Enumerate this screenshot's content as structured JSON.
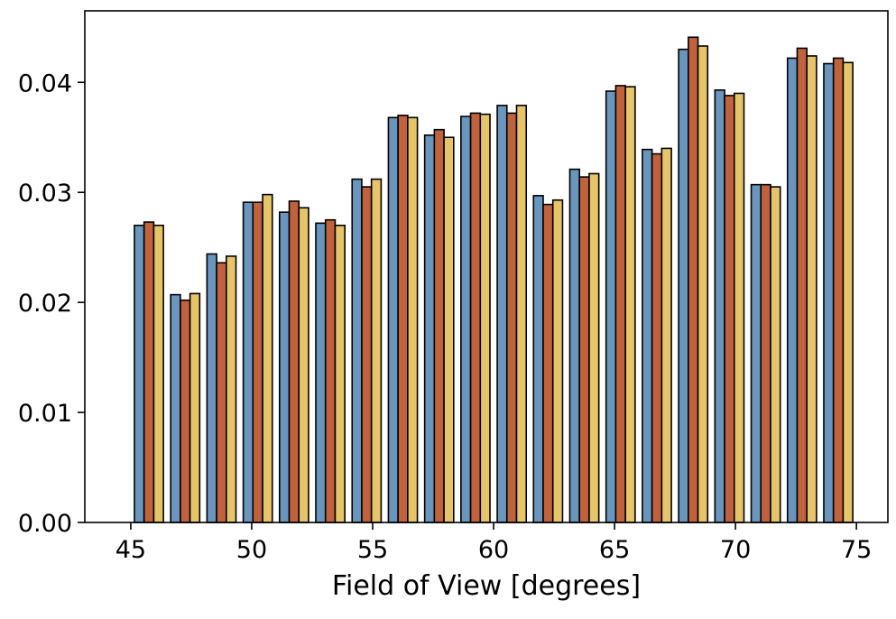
{
  "chart_data": {
    "type": "bar",
    "title": "",
    "xlabel": "Field of View [degrees]",
    "ylabel": "",
    "x_bin_edges": [
      45,
      46.5,
      48,
      49.5,
      51,
      52.5,
      54,
      55.5,
      57,
      58.5,
      60,
      61.5,
      63,
      64.5,
      66,
      67.5,
      69,
      70.5,
      72,
      73.5,
      75
    ],
    "xlim": [
      43.1,
      76.3
    ],
    "ylim": [
      0,
      0.0465
    ],
    "xticks": [
      45,
      50,
      55,
      60,
      65,
      70,
      75
    ],
    "xtick_labels": [
      "45",
      "50",
      "55",
      "60",
      "65",
      "70",
      "75"
    ],
    "yticks": [
      0,
      0.01,
      0.02,
      0.03,
      0.04
    ],
    "ytick_labels": [
      "0.00",
      "0.01",
      "0.02",
      "0.03",
      "0.04"
    ],
    "grid": false,
    "legend": "none",
    "series": [
      {
        "color": "#6a95bd",
        "values": [
          0.027,
          0.0207,
          0.0244,
          0.0291,
          0.0282,
          0.0272,
          0.0312,
          0.0368,
          0.0352,
          0.0369,
          0.0379,
          0.0297,
          0.0321,
          0.0392,
          0.0339,
          0.043,
          0.0393,
          0.0307,
          0.0422,
          0.0417
        ]
      },
      {
        "color": "#c1623e",
        "values": [
          0.0273,
          0.0202,
          0.0236,
          0.0291,
          0.0292,
          0.0275,
          0.0305,
          0.037,
          0.0357,
          0.0372,
          0.0372,
          0.0289,
          0.0314,
          0.0397,
          0.0335,
          0.0441,
          0.0388,
          0.0307,
          0.0431,
          0.0422
        ]
      },
      {
        "color": "#e6c46a",
        "values": [
          0.027,
          0.0208,
          0.0242,
          0.0298,
          0.0286,
          0.027,
          0.0312,
          0.0368,
          0.035,
          0.0371,
          0.0379,
          0.0293,
          0.0317,
          0.0396,
          0.034,
          0.0433,
          0.039,
          0.0305,
          0.0424,
          0.0418
        ]
      }
    ]
  }
}
